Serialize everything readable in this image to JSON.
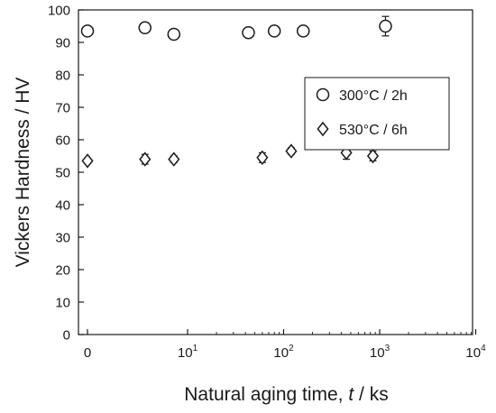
{
  "chart_data": {
    "type": "scatter",
    "xscale": "log10 with a zero point at the left axis",
    "xlabel_prefix": "Natural aging time, ",
    "xlabel_var": "t",
    "xlabel_suffix": " / ks",
    "ylabel": "Vickers Hardness / HV",
    "xlim": [
      0,
      10000
    ],
    "ylim": [
      0,
      100
    ],
    "xticks": [
      {
        "value": 0,
        "base": "0",
        "exp": ""
      },
      {
        "value": 10,
        "base": "10",
        "exp": "1"
      },
      {
        "value": 100,
        "base": "10",
        "exp": "2"
      },
      {
        "value": 1000,
        "base": "10",
        "exp": "3"
      },
      {
        "value": 10000,
        "base": "10",
        "exp": "4"
      }
    ],
    "yticks": [
      0,
      10,
      20,
      30,
      40,
      50,
      60,
      70,
      80,
      90,
      100
    ],
    "grid": false,
    "legend_position": "top-right inside plot",
    "series": [
      {
        "name": "300°C / 2h",
        "marker": "circle",
        "points": [
          {
            "x": 0,
            "y": 93.5,
            "err": 1.5
          },
          {
            "x": 3.6,
            "y": 94.5,
            "err": 1.5
          },
          {
            "x": 7.2,
            "y": 92.5,
            "err": 1.0
          },
          {
            "x": 43,
            "y": 93.0,
            "err": 1.0
          },
          {
            "x": 80,
            "y": 93.5,
            "err": 1.0
          },
          {
            "x": 160,
            "y": 93.5,
            "err": 1.5
          },
          {
            "x": 1150,
            "y": 95.0,
            "err": 3.0
          }
        ]
      },
      {
        "name": "530°C / 6h",
        "marker": "diamond",
        "points": [
          {
            "x": 0,
            "y": 53.5,
            "err": 0.5
          },
          {
            "x": 3.6,
            "y": 54.0,
            "err": 1.5
          },
          {
            "x": 7.2,
            "y": 54.0,
            "err": 1.0
          },
          {
            "x": 60,
            "y": 54.5,
            "err": 1.5
          },
          {
            "x": 120,
            "y": 56.5,
            "err": 1.0
          },
          {
            "x": 450,
            "y": 56.0,
            "err": 2.0
          },
          {
            "x": 850,
            "y": 55.0,
            "err": 1.5
          }
        ]
      }
    ]
  }
}
